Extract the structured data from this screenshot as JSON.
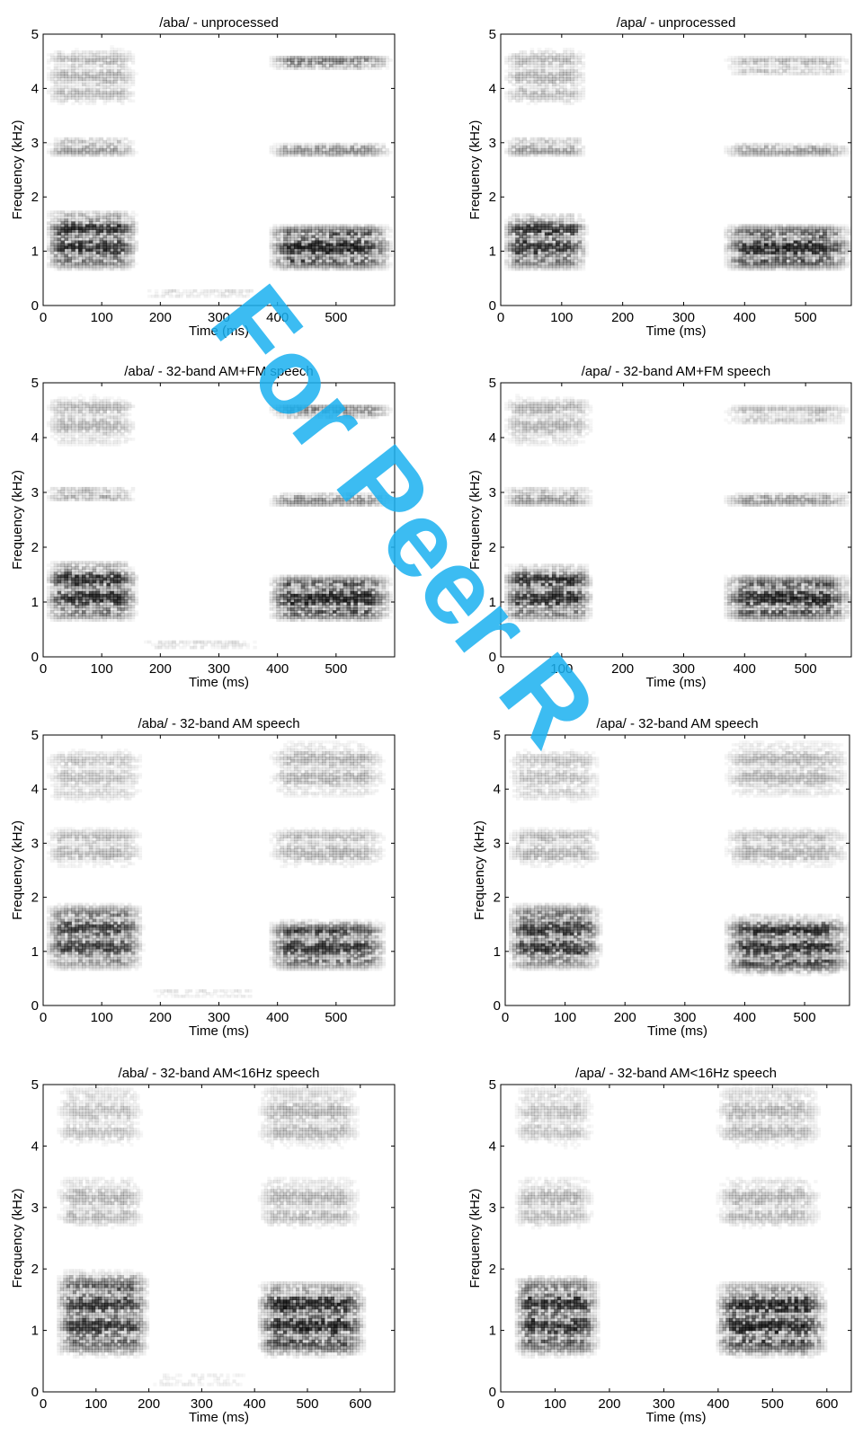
{
  "chart_data": [
    {
      "type": "heatmap",
      "title": "/aba/ - unprocessed",
      "xlabel": "Time (ms)",
      "ylabel": "Frequency (kHz)",
      "xlim": [
        0,
        600
      ],
      "ylim": [
        0,
        5
      ],
      "xticks": [
        0,
        100,
        200,
        300,
        400,
        500
      ],
      "yticks": [
        0,
        1,
        2,
        3,
        4,
        5
      ],
      "colormap": "gray_r",
      "regions": [
        {
          "t": [
            0,
            160
          ],
          "f": [
            0.6,
            1.75
          ],
          "level": 0.85
        },
        {
          "t": [
            0,
            160
          ],
          "f": [
            2.7,
            3.1
          ],
          "level": 0.35
        },
        {
          "t": [
            0,
            160
          ],
          "f": [
            3.6,
            4.8
          ],
          "level": 0.25
        },
        {
          "t": [
            160,
            380
          ],
          "f": [
            0.1,
            0.3
          ],
          "level": 0.15
        },
        {
          "t": [
            380,
            595
          ],
          "f": [
            0.6,
            1.5
          ],
          "level": 0.9
        },
        {
          "t": [
            380,
            595
          ],
          "f": [
            2.7,
            3.0
          ],
          "level": 0.4
        },
        {
          "t": [
            380,
            595
          ],
          "f": [
            4.3,
            4.6
          ],
          "level": 0.5
        }
      ]
    },
    {
      "type": "heatmap",
      "title": "/apa/ - unprocessed",
      "xlabel": "Time (ms)",
      "ylabel": "Frequency (kHz)",
      "xlim": [
        0,
        575
      ],
      "ylim": [
        0,
        5
      ],
      "xticks": [
        0,
        100,
        200,
        300,
        400,
        500
      ],
      "yticks": [
        0,
        1,
        2,
        3,
        4,
        5
      ],
      "colormap": "gray_r",
      "regions": [
        {
          "t": [
            0,
            140
          ],
          "f": [
            0.6,
            1.7
          ],
          "level": 0.85
        },
        {
          "t": [
            0,
            140
          ],
          "f": [
            2.7,
            3.1
          ],
          "level": 0.35
        },
        {
          "t": [
            0,
            140
          ],
          "f": [
            3.6,
            4.8
          ],
          "level": 0.25
        },
        {
          "t": [
            360,
            575
          ],
          "f": [
            0.6,
            1.5
          ],
          "level": 0.9
        },
        {
          "t": [
            360,
            575
          ],
          "f": [
            2.7,
            3.0
          ],
          "level": 0.35
        },
        {
          "t": [
            360,
            575
          ],
          "f": [
            4.2,
            4.6
          ],
          "level": 0.25
        }
      ]
    },
    {
      "type": "heatmap",
      "title": "/aba/ - 32-band AM+FM speech",
      "xlabel": "Time (ms)",
      "ylabel": "Frequency (kHz)",
      "xlim": [
        0,
        600
      ],
      "ylim": [
        0,
        5
      ],
      "xticks": [
        0,
        100,
        200,
        300,
        400,
        500
      ],
      "yticks": [
        0,
        1,
        2,
        3,
        4,
        5
      ],
      "colormap": "gray_r",
      "regions": [
        {
          "t": [
            0,
            160
          ],
          "f": [
            0.6,
            1.75
          ],
          "level": 0.85
        },
        {
          "t": [
            0,
            160
          ],
          "f": [
            2.8,
            3.1
          ],
          "level": 0.35
        },
        {
          "t": [
            0,
            160
          ],
          "f": [
            3.8,
            4.8
          ],
          "level": 0.25
        },
        {
          "t": [
            160,
            380
          ],
          "f": [
            0.1,
            0.3
          ],
          "level": 0.15
        },
        {
          "t": [
            380,
            595
          ],
          "f": [
            0.6,
            1.5
          ],
          "level": 0.9
        },
        {
          "t": [
            380,
            595
          ],
          "f": [
            2.7,
            3.0
          ],
          "level": 0.4
        },
        {
          "t": [
            380,
            595
          ],
          "f": [
            4.3,
            4.6
          ],
          "level": 0.5
        }
      ]
    },
    {
      "type": "heatmap",
      "title": "/apa/ - 32-band AM+FM speech",
      "xlabel": "Time (ms)",
      "ylabel": "Frequency (kHz)",
      "xlim": [
        0,
        575
      ],
      "ylim": [
        0,
        5
      ],
      "xticks": [
        0,
        100,
        200,
        300,
        400,
        500
      ],
      "yticks": [
        0,
        1,
        2,
        3,
        4,
        5
      ],
      "colormap": "gray_r",
      "regions": [
        {
          "t": [
            0,
            150
          ],
          "f": [
            0.6,
            1.7
          ],
          "level": 0.85
        },
        {
          "t": [
            0,
            150
          ],
          "f": [
            2.7,
            3.1
          ],
          "level": 0.35
        },
        {
          "t": [
            0,
            150
          ],
          "f": [
            3.8,
            4.8
          ],
          "level": 0.25
        },
        {
          "t": [
            360,
            575
          ],
          "f": [
            0.6,
            1.5
          ],
          "level": 0.9
        },
        {
          "t": [
            360,
            575
          ],
          "f": [
            2.7,
            3.0
          ],
          "level": 0.35
        },
        {
          "t": [
            360,
            575
          ],
          "f": [
            4.2,
            4.6
          ],
          "level": 0.25
        }
      ]
    },
    {
      "type": "heatmap",
      "title": "/aba/ - 32-band AM speech",
      "xlabel": "Time (ms)",
      "ylabel": "Frequency (kHz)",
      "xlim": [
        0,
        600
      ],
      "ylim": [
        0,
        5
      ],
      "xticks": [
        0,
        100,
        200,
        300,
        400,
        500
      ],
      "yticks": [
        0,
        1,
        2,
        3,
        4,
        5
      ],
      "colormap": "gray_r",
      "regions": [
        {
          "t": [
            0,
            170
          ],
          "f": [
            0.6,
            1.9
          ],
          "level": 0.75
        },
        {
          "t": [
            0,
            170
          ],
          "f": [
            2.5,
            3.3
          ],
          "level": 0.25
        },
        {
          "t": [
            0,
            170
          ],
          "f": [
            3.7,
            4.8
          ],
          "level": 0.2
        },
        {
          "t": [
            170,
            380
          ],
          "f": [
            0.1,
            0.3
          ],
          "level": 0.12
        },
        {
          "t": [
            380,
            585
          ],
          "f": [
            0.6,
            1.6
          ],
          "level": 0.8
        },
        {
          "t": [
            380,
            585
          ],
          "f": [
            2.5,
            3.3
          ],
          "level": 0.25
        },
        {
          "t": [
            380,
            585
          ],
          "f": [
            3.8,
            4.9
          ],
          "level": 0.25
        }
      ]
    },
    {
      "type": "heatmap",
      "title": "/apa/ - 32-band AM speech",
      "xlabel": "Time (ms)",
      "ylabel": "Frequency (kHz)",
      "xlim": [
        0,
        575
      ],
      "ylim": [
        0,
        5
      ],
      "xticks": [
        0,
        100,
        200,
        300,
        400,
        500
      ],
      "yticks": [
        0,
        1,
        2,
        3,
        4,
        5
      ],
      "colormap": "gray_r",
      "regions": [
        {
          "t": [
            0,
            160
          ],
          "f": [
            0.6,
            1.9
          ],
          "level": 0.8
        },
        {
          "t": [
            0,
            160
          ],
          "f": [
            2.5,
            3.3
          ],
          "level": 0.25
        },
        {
          "t": [
            0,
            160
          ],
          "f": [
            3.7,
            4.8
          ],
          "level": 0.2
        },
        {
          "t": [
            360,
            575
          ],
          "f": [
            0.5,
            1.7
          ],
          "level": 0.85
        },
        {
          "t": [
            360,
            575
          ],
          "f": [
            2.5,
            3.3
          ],
          "level": 0.25
        },
        {
          "t": [
            360,
            575
          ],
          "f": [
            3.8,
            4.9
          ],
          "level": 0.25
        }
      ]
    },
    {
      "type": "heatmap",
      "title": "/aba/ - 32-band AM<16Hz speech",
      "xlabel": "Time (ms)",
      "ylabel": "Frequency (kHz)",
      "xlim": [
        0,
        665
      ],
      "ylim": [
        0,
        5
      ],
      "xticks": [
        0,
        100,
        200,
        300,
        400,
        500,
        600
      ],
      "yticks": [
        0,
        1,
        2,
        3,
        4,
        5
      ],
      "colormap": "gray_r",
      "regions": [
        {
          "t": [
            20,
            200
          ],
          "f": [
            0.5,
            2.0
          ],
          "level": 0.8
        },
        {
          "t": [
            20,
            190
          ],
          "f": [
            2.6,
            3.5
          ],
          "level": 0.25
        },
        {
          "t": [
            20,
            190
          ],
          "f": [
            3.9,
            5.0
          ],
          "level": 0.2
        },
        {
          "t": [
            190,
            400
          ],
          "f": [
            0.05,
            0.3
          ],
          "level": 0.1
        },
        {
          "t": [
            400,
            610
          ],
          "f": [
            0.5,
            1.8
          ],
          "level": 0.9
        },
        {
          "t": [
            400,
            600
          ],
          "f": [
            2.6,
            3.5
          ],
          "level": 0.25
        },
        {
          "t": [
            400,
            600
          ],
          "f": [
            3.9,
            5.0
          ],
          "level": 0.25
        }
      ]
    },
    {
      "type": "heatmap",
      "title": "/apa/ - 32-band AM<16Hz speech",
      "xlabel": "Time (ms)",
      "ylabel": "Frequency (kHz)",
      "xlim": [
        0,
        645
      ],
      "ylim": [
        0,
        5
      ],
      "xticks": [
        0,
        100,
        200,
        300,
        400,
        500,
        600
      ],
      "yticks": [
        0,
        1,
        2,
        3,
        4,
        5
      ],
      "colormap": "gray_r",
      "regions": [
        {
          "t": [
            20,
            180
          ],
          "f": [
            0.5,
            1.9
          ],
          "level": 0.85
        },
        {
          "t": [
            20,
            170
          ],
          "f": [
            2.6,
            3.5
          ],
          "level": 0.25
        },
        {
          "t": [
            20,
            170
          ],
          "f": [
            3.9,
            5.0
          ],
          "level": 0.2
        },
        {
          "t": [
            390,
            600
          ],
          "f": [
            0.5,
            1.8
          ],
          "level": 0.9
        },
        {
          "t": [
            390,
            590
          ],
          "f": [
            2.6,
            3.5
          ],
          "level": 0.25
        },
        {
          "t": [
            390,
            590
          ],
          "f": [
            3.9,
            5.0
          ],
          "level": 0.25
        }
      ]
    }
  ],
  "watermark": {
    "text": "For Peer R",
    "color": "#1ab0f0"
  }
}
